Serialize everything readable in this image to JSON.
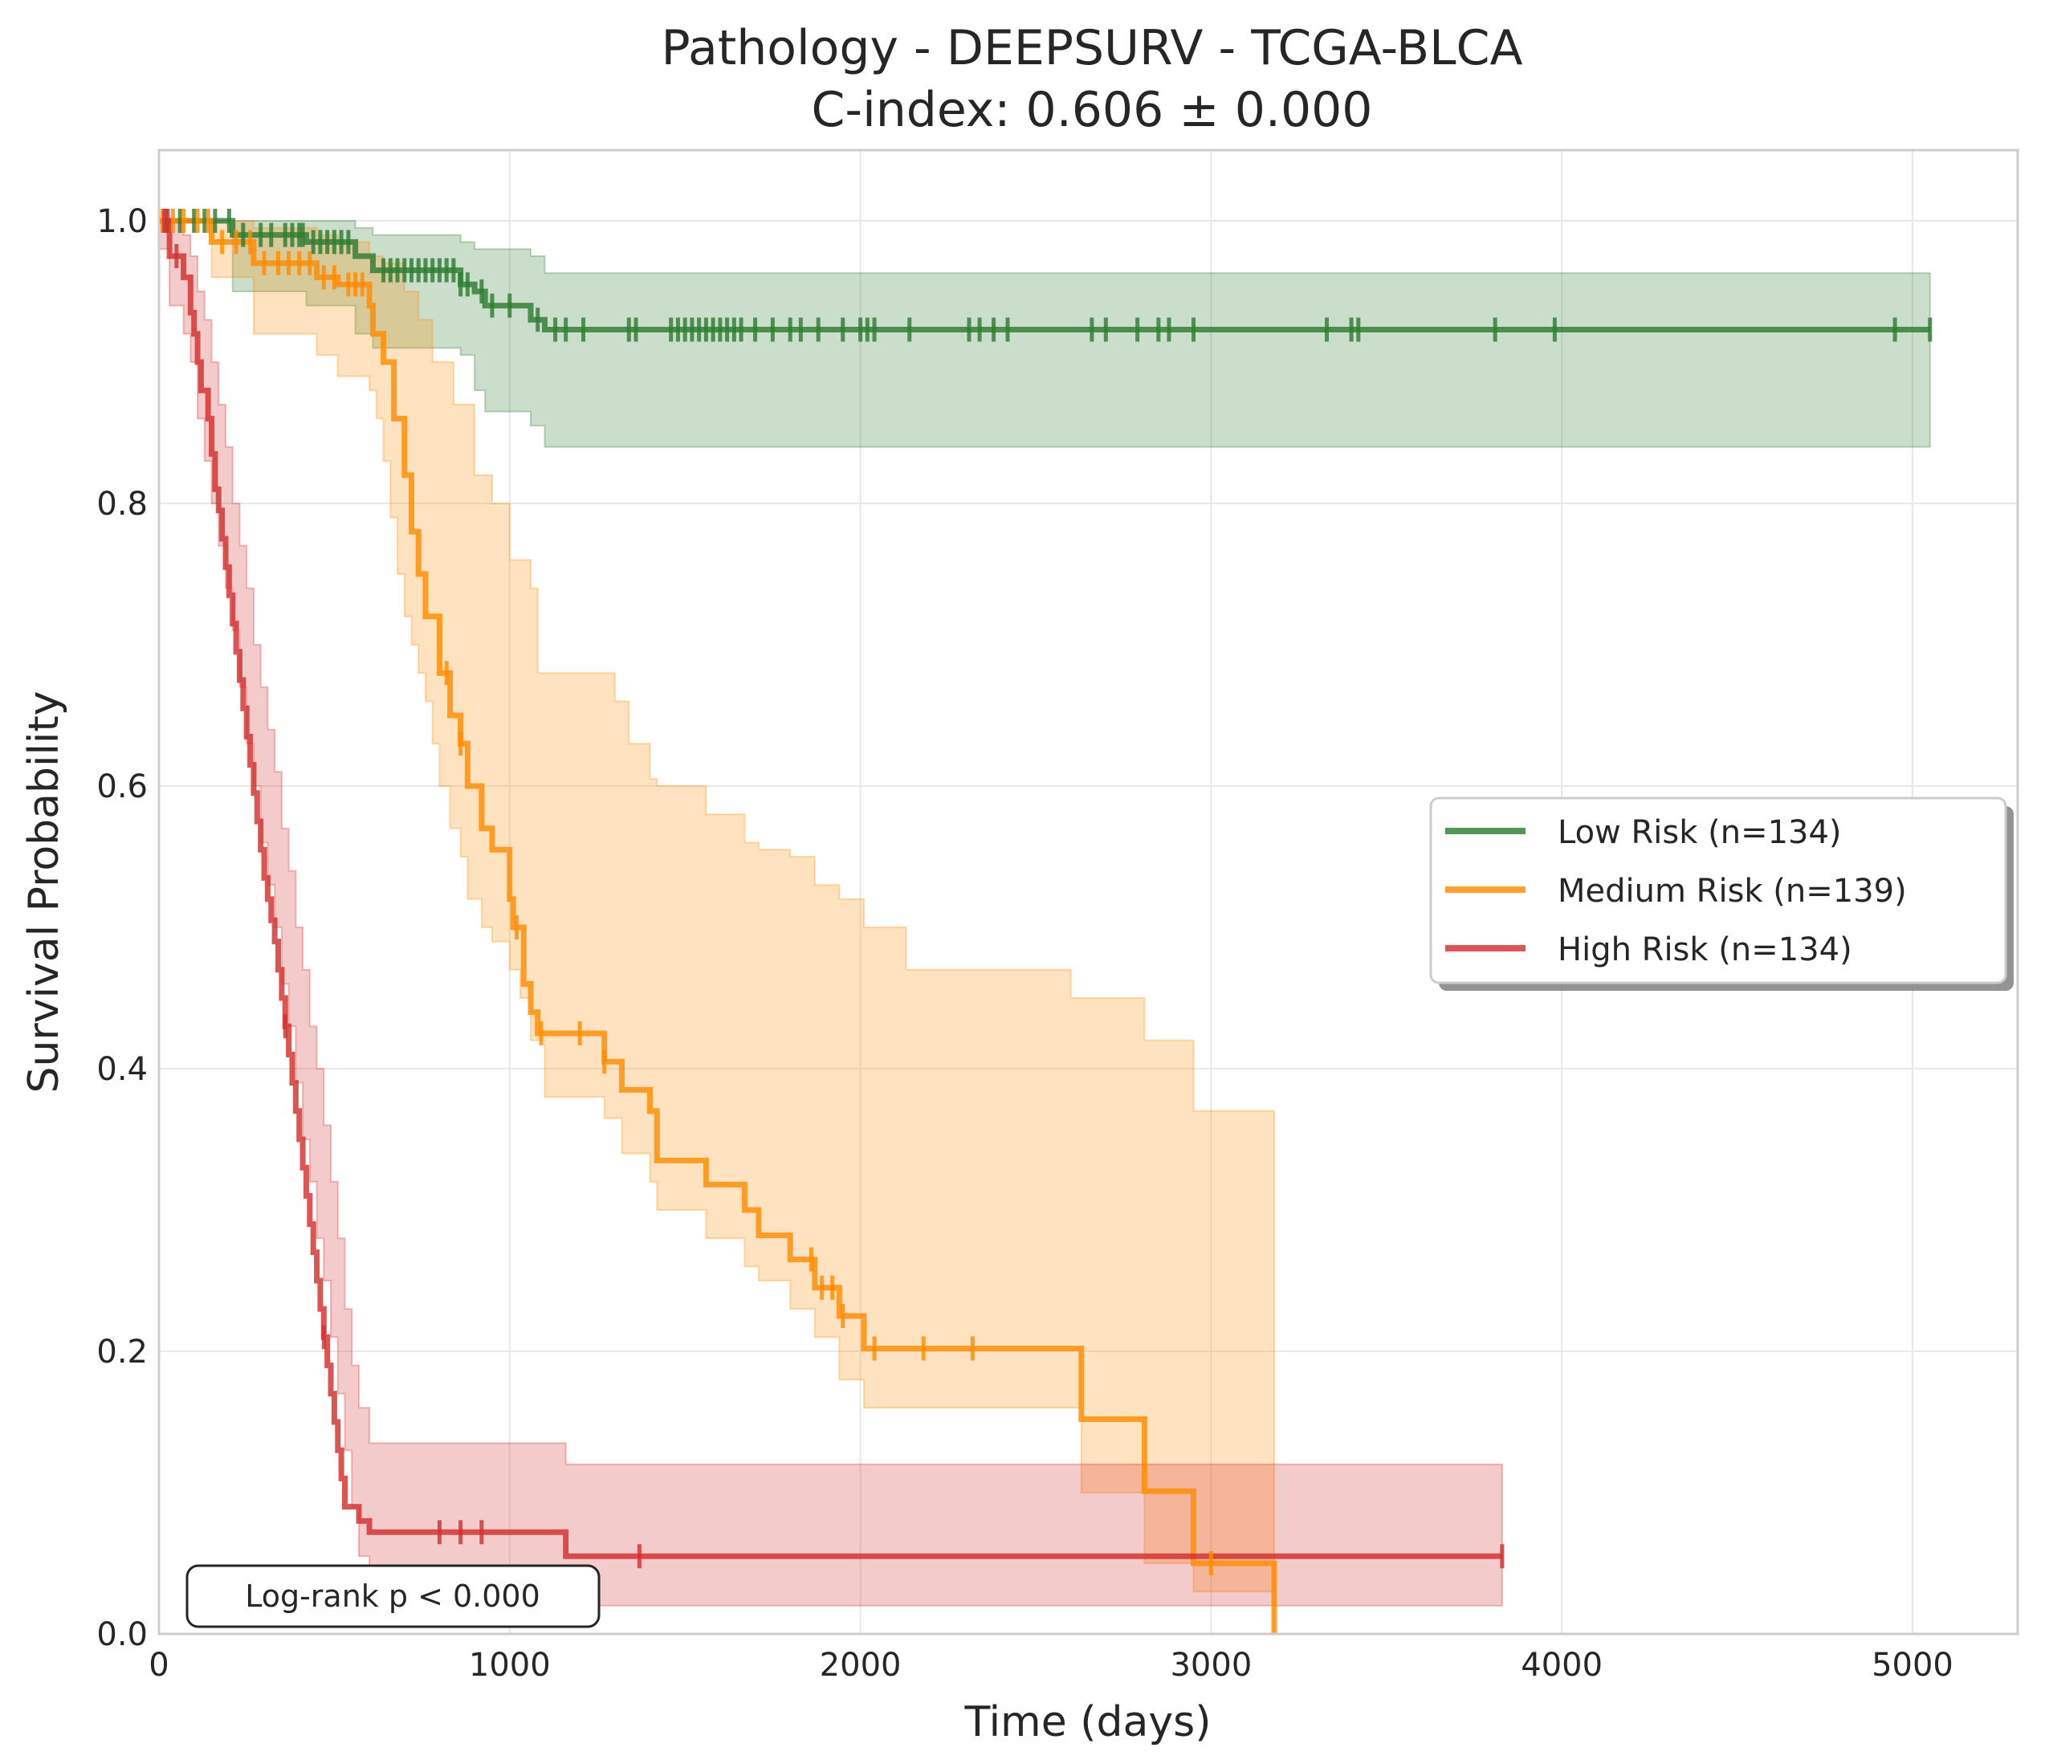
{
  "chart_data": {
    "type": "line",
    "title": "Pathology - DEEPSURV - TCGA-BLCA",
    "subtitle": "C-index: 0.606 ± 0.000",
    "xlabel": "Time (days)",
    "ylabel": "Survival Probability",
    "xlim": [
      0,
      5300
    ],
    "ylim": [
      0,
      1.05
    ],
    "xticks": [
      0,
      1000,
      2000,
      3000,
      4000,
      5000
    ],
    "xtick_labels": [
      "0",
      "1000",
      "2000",
      "3000",
      "4000",
      "5000"
    ],
    "yticks": [
      0.0,
      0.2,
      0.4,
      0.6,
      0.8,
      1.0
    ],
    "ytick_labels": [
      "0.0",
      "0.2",
      "0.4",
      "0.6",
      "0.8",
      "1.0"
    ],
    "grid": true,
    "legend_position": "center-right",
    "annotation": "Log-rank p < 0.000",
    "series": [
      {
        "name": "Low Risk (n=134)",
        "color": "#2e7d32",
        "step_points": [
          [
            0,
            1.0
          ],
          [
            210,
            0.99
          ],
          [
            420,
            0.985
          ],
          [
            560,
            0.975
          ],
          [
            610,
            0.965
          ],
          [
            860,
            0.955
          ],
          [
            900,
            0.95
          ],
          [
            930,
            0.94
          ],
          [
            1060,
            0.93
          ],
          [
            1100,
            0.923
          ],
          [
            5050,
            0.923
          ]
        ],
        "ci_upper": [
          [
            0,
            1.0
          ],
          [
            210,
            1.0
          ],
          [
            420,
            1.0
          ],
          [
            560,
            0.995
          ],
          [
            610,
            0.99
          ],
          [
            860,
            0.985
          ],
          [
            900,
            0.98
          ],
          [
            1060,
            0.975
          ],
          [
            1100,
            0.963
          ],
          [
            5050,
            0.963
          ]
        ],
        "ci_lower": [
          [
            0,
            1.0
          ],
          [
            210,
            0.95
          ],
          [
            420,
            0.94
          ],
          [
            560,
            0.92
          ],
          [
            610,
            0.91
          ],
          [
            860,
            0.905
          ],
          [
            900,
            0.88
          ],
          [
            930,
            0.865
          ],
          [
            1060,
            0.855
          ],
          [
            1100,
            0.84
          ],
          [
            5050,
            0.84
          ]
        ],
        "censor_times": [
          20,
          60,
          100,
          130,
          160,
          200,
          240,
          290,
          320,
          360,
          380,
          400,
          410,
          440,
          460,
          480,
          500,
          520,
          540,
          640,
          660,
          680,
          700,
          720,
          740,
          760,
          780,
          800,
          820,
          840,
          860,
          880,
          920,
          950,
          1000,
          1080,
          1130,
          1160,
          1210,
          1340,
          1360,
          1460,
          1480,
          1500,
          1520,
          1540,
          1560,
          1580,
          1600,
          1620,
          1640,
          1660,
          1700,
          1750,
          1800,
          1830,
          1880,
          1950,
          2000,
          2020,
          2040,
          2140,
          2310,
          2340,
          2380,
          2420,
          2660,
          2700,
          2790,
          2850,
          2880,
          2950,
          3330,
          3400,
          3420,
          3810,
          3980,
          4950,
          5050
        ]
      },
      {
        "name": "Medium Risk (n=139)",
        "color": "#ff8c00",
        "step_points": [
          [
            0,
            1.0
          ],
          [
            150,
            0.985
          ],
          [
            270,
            0.97
          ],
          [
            450,
            0.96
          ],
          [
            510,
            0.955
          ],
          [
            600,
            0.94
          ],
          [
            610,
            0.92
          ],
          [
            640,
            0.9
          ],
          [
            670,
            0.86
          ],
          [
            700,
            0.82
          ],
          [
            720,
            0.78
          ],
          [
            740,
            0.75
          ],
          [
            760,
            0.72
          ],
          [
            800,
            0.68
          ],
          [
            830,
            0.65
          ],
          [
            860,
            0.63
          ],
          [
            880,
            0.6
          ],
          [
            920,
            0.57
          ],
          [
            950,
            0.555
          ],
          [
            1000,
            0.52
          ],
          [
            1010,
            0.5
          ],
          [
            1040,
            0.46
          ],
          [
            1060,
            0.44
          ],
          [
            1080,
            0.425
          ],
          [
            1270,
            0.405
          ],
          [
            1320,
            0.385
          ],
          [
            1400,
            0.37
          ],
          [
            1420,
            0.335
          ],
          [
            1560,
            0.318
          ],
          [
            1670,
            0.3
          ],
          [
            1710,
            0.282
          ],
          [
            1800,
            0.265
          ],
          [
            1870,
            0.245
          ],
          [
            1940,
            0.225
          ],
          [
            2010,
            0.202
          ],
          [
            2630,
            0.152
          ],
          [
            2810,
            0.101
          ],
          [
            2950,
            0.05
          ],
          [
            3180,
            0.0
          ]
        ],
        "ci_upper": [
          [
            0,
            1.0
          ],
          [
            150,
            1.0
          ],
          [
            270,
            0.995
          ],
          [
            450,
            0.99
          ],
          [
            510,
            0.985
          ],
          [
            600,
            0.975
          ],
          [
            640,
            0.97
          ],
          [
            700,
            0.95
          ],
          [
            740,
            0.93
          ],
          [
            780,
            0.9
          ],
          [
            840,
            0.87
          ],
          [
            900,
            0.82
          ],
          [
            950,
            0.8
          ],
          [
            1000,
            0.76
          ],
          [
            1060,
            0.74
          ],
          [
            1080,
            0.68
          ],
          [
            1300,
            0.66
          ],
          [
            1340,
            0.63
          ],
          [
            1400,
            0.605
          ],
          [
            1420,
            0.6
          ],
          [
            1560,
            0.58
          ],
          [
            1670,
            0.56
          ],
          [
            1710,
            0.555
          ],
          [
            1800,
            0.55
          ],
          [
            1870,
            0.53
          ],
          [
            1940,
            0.52
          ],
          [
            2010,
            0.5
          ],
          [
            2130,
            0.47
          ],
          [
            2600,
            0.45
          ],
          [
            2810,
            0.42
          ],
          [
            2950,
            0.37
          ],
          [
            3180,
            0.37
          ]
        ],
        "ci_lower": [
          [
            0,
            1.0
          ],
          [
            150,
            0.96
          ],
          [
            270,
            0.92
          ],
          [
            450,
            0.905
          ],
          [
            510,
            0.89
          ],
          [
            600,
            0.88
          ],
          [
            620,
            0.86
          ],
          [
            640,
            0.83
          ],
          [
            660,
            0.79
          ],
          [
            680,
            0.75
          ],
          [
            700,
            0.72
          ],
          [
            720,
            0.7
          ],
          [
            740,
            0.68
          ],
          [
            760,
            0.66
          ],
          [
            780,
            0.63
          ],
          [
            800,
            0.6
          ],
          [
            830,
            0.57
          ],
          [
            860,
            0.55
          ],
          [
            880,
            0.52
          ],
          [
            920,
            0.5
          ],
          [
            950,
            0.49
          ],
          [
            1000,
            0.47
          ],
          [
            1030,
            0.45
          ],
          [
            1060,
            0.42
          ],
          [
            1100,
            0.38
          ],
          [
            1270,
            0.365
          ],
          [
            1320,
            0.34
          ],
          [
            1400,
            0.32
          ],
          [
            1420,
            0.3
          ],
          [
            1560,
            0.28
          ],
          [
            1670,
            0.26
          ],
          [
            1710,
            0.25
          ],
          [
            1800,
            0.23
          ],
          [
            1870,
            0.21
          ],
          [
            1940,
            0.18
          ],
          [
            2010,
            0.16
          ],
          [
            2630,
            0.1
          ],
          [
            2810,
            0.05
          ],
          [
            2950,
            0.03
          ],
          [
            3180,
            0.0
          ]
        ],
        "censor_times": [
          10,
          40,
          70,
          110,
          140,
          180,
          220,
          260,
          300,
          340,
          370,
          400,
          430,
          470,
          500,
          540,
          560,
          580,
          820,
          860,
          1020,
          1090,
          1200,
          1270,
          1860,
          1890,
          1920,
          1950,
          2040,
          2180,
          2320,
          3000
        ]
      },
      {
        "name": "High Risk (n=134)",
        "color": "#d32f2f",
        "step_points": [
          [
            0,
            1.0
          ],
          [
            30,
            0.975
          ],
          [
            70,
            0.96
          ],
          [
            90,
            0.935
          ],
          [
            100,
            0.92
          ],
          [
            110,
            0.9
          ],
          [
            120,
            0.88
          ],
          [
            140,
            0.86
          ],
          [
            150,
            0.835
          ],
          [
            160,
            0.81
          ],
          [
            170,
            0.795
          ],
          [
            180,
            0.775
          ],
          [
            190,
            0.755
          ],
          [
            200,
            0.735
          ],
          [
            210,
            0.715
          ],
          [
            220,
            0.695
          ],
          [
            230,
            0.675
          ],
          [
            240,
            0.655
          ],
          [
            250,
            0.635
          ],
          [
            260,
            0.615
          ],
          [
            270,
            0.595
          ],
          [
            280,
            0.575
          ],
          [
            290,
            0.555
          ],
          [
            300,
            0.535
          ],
          [
            310,
            0.52
          ],
          [
            320,
            0.505
          ],
          [
            330,
            0.49
          ],
          [
            340,
            0.47
          ],
          [
            350,
            0.45
          ],
          [
            360,
            0.43
          ],
          [
            370,
            0.41
          ],
          [
            380,
            0.39
          ],
          [
            390,
            0.37
          ],
          [
            400,
            0.35
          ],
          [
            410,
            0.33
          ],
          [
            420,
            0.31
          ],
          [
            430,
            0.29
          ],
          [
            440,
            0.27
          ],
          [
            450,
            0.25
          ],
          [
            460,
            0.23
          ],
          [
            470,
            0.21
          ],
          [
            480,
            0.19
          ],
          [
            490,
            0.17
          ],
          [
            500,
            0.15
          ],
          [
            510,
            0.13
          ],
          [
            520,
            0.11
          ],
          [
            530,
            0.09
          ],
          [
            570,
            0.08
          ],
          [
            600,
            0.072
          ],
          [
            1160,
            0.055
          ],
          [
            3830,
            0.055
          ]
        ],
        "ci_upper": [
          [
            0,
            1.0
          ],
          [
            30,
            1.0
          ],
          [
            70,
            0.99
          ],
          [
            90,
            0.975
          ],
          [
            110,
            0.95
          ],
          [
            130,
            0.93
          ],
          [
            150,
            0.9
          ],
          [
            170,
            0.87
          ],
          [
            190,
            0.84
          ],
          [
            210,
            0.8
          ],
          [
            230,
            0.77
          ],
          [
            250,
            0.74
          ],
          [
            270,
            0.7
          ],
          [
            290,
            0.67
          ],
          [
            310,
            0.64
          ],
          [
            330,
            0.61
          ],
          [
            350,
            0.57
          ],
          [
            370,
            0.54
          ],
          [
            390,
            0.5
          ],
          [
            410,
            0.47
          ],
          [
            430,
            0.43
          ],
          [
            450,
            0.4
          ],
          [
            470,
            0.36
          ],
          [
            490,
            0.32
          ],
          [
            510,
            0.28
          ],
          [
            530,
            0.23
          ],
          [
            550,
            0.19
          ],
          [
            570,
            0.16
          ],
          [
            600,
            0.135
          ],
          [
            1160,
            0.12
          ],
          [
            3830,
            0.12
          ]
        ],
        "ci_lower": [
          [
            0,
            0.98
          ],
          [
            30,
            0.94
          ],
          [
            70,
            0.92
          ],
          [
            90,
            0.9
          ],
          [
            110,
            0.86
          ],
          [
            130,
            0.83
          ],
          [
            150,
            0.8
          ],
          [
            170,
            0.77
          ],
          [
            190,
            0.74
          ],
          [
            210,
            0.71
          ],
          [
            230,
            0.67
          ],
          [
            250,
            0.63
          ],
          [
            270,
            0.6
          ],
          [
            290,
            0.56
          ],
          [
            310,
            0.53
          ],
          [
            330,
            0.5
          ],
          [
            350,
            0.46
          ],
          [
            370,
            0.43
          ],
          [
            390,
            0.39
          ],
          [
            410,
            0.35
          ],
          [
            430,
            0.32
          ],
          [
            450,
            0.28
          ],
          [
            470,
            0.25
          ],
          [
            490,
            0.21
          ],
          [
            510,
            0.17
          ],
          [
            530,
            0.13
          ],
          [
            550,
            0.09
          ],
          [
            570,
            0.055
          ],
          [
            600,
            0.04
          ],
          [
            1160,
            0.02
          ],
          [
            3830,
            0.02
          ]
        ],
        "censor_times": [
          15,
          25,
          50,
          360,
          470,
          800,
          860,
          920,
          1370,
          3830
        ]
      }
    ]
  }
}
